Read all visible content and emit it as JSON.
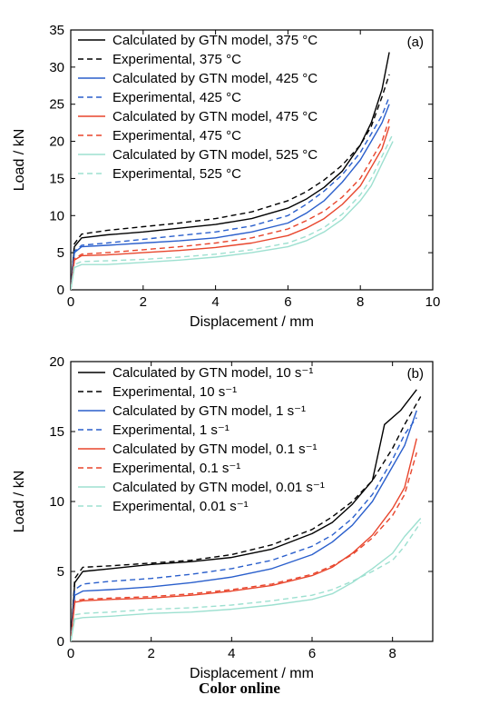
{
  "caption": "Color online",
  "chart_data": [
    {
      "type": "line",
      "panel_label": "(a)",
      "xlabel": "Displacement / mm",
      "ylabel": "Load / kN",
      "xlim": [
        0,
        10
      ],
      "ylim": [
        0,
        35
      ],
      "xticks": [
        0,
        2,
        4,
        6,
        8,
        10
      ],
      "yticks": [
        0,
        5,
        10,
        15,
        20,
        25,
        30,
        35
      ],
      "legend_position": "top-left",
      "series": [
        {
          "name": "Calculated by GTN model, 375 °C",
          "color": "#000000",
          "dash": "solid",
          "x": [
            0,
            0.1,
            0.3,
            1,
            2,
            3,
            4,
            5,
            6,
            6.5,
            7,
            7.5,
            8,
            8.3,
            8.6,
            8.8
          ],
          "y": [
            0,
            5.8,
            7.0,
            7.4,
            7.8,
            8.3,
            8.8,
            9.6,
            11.0,
            12.2,
            13.8,
            16.0,
            19.5,
            22.5,
            27.0,
            32.0
          ]
        },
        {
          "name": "Experimental, 375 °C",
          "color": "#000000",
          "dash": "dashed",
          "x": [
            0,
            0.1,
            0.3,
            1,
            2,
            3,
            4,
            5,
            6,
            6.5,
            7,
            7.5,
            8,
            8.3,
            8.6,
            8.8
          ],
          "y": [
            0,
            6.2,
            7.5,
            8.0,
            8.5,
            9.0,
            9.6,
            10.5,
            12.0,
            13.2,
            14.8,
            16.8,
            19.5,
            22.0,
            26.0,
            29.0
          ]
        },
        {
          "name": "Calculated by GTN model, 425 °C",
          "color": "#2a5fcc",
          "dash": "solid",
          "x": [
            0,
            0.1,
            0.3,
            1,
            2,
            3,
            4,
            5,
            6,
            6.5,
            7,
            7.5,
            8,
            8.3,
            8.6,
            8.8
          ],
          "y": [
            0,
            5.0,
            5.8,
            6.0,
            6.3,
            6.6,
            7.0,
            7.8,
            9.0,
            10.3,
            12.0,
            14.5,
            17.5,
            20.0,
            22.5,
            25.0
          ]
        },
        {
          "name": "Experimental, 425 °C",
          "color": "#2a5fcc",
          "dash": "dashed",
          "x": [
            0,
            0.1,
            0.3,
            1,
            2,
            3,
            4,
            5,
            6,
            6.5,
            7,
            7.5,
            8,
            8.3,
            8.6,
            8.8
          ],
          "y": [
            0,
            5.2,
            6.0,
            6.3,
            6.8,
            7.3,
            7.8,
            8.6,
            10.0,
            11.5,
            13.3,
            15.5,
            18.5,
            21.0,
            23.5,
            26.0
          ]
        },
        {
          "name": "Calculated by GTN model, 475 °C",
          "color": "#e8452c",
          "dash": "solid",
          "x": [
            0,
            0.1,
            0.3,
            1,
            2,
            3,
            4,
            5,
            6,
            6.5,
            7,
            7.5,
            8,
            8.3,
            8.6,
            8.8
          ],
          "y": [
            0,
            4.0,
            4.6,
            4.7,
            5.0,
            5.3,
            5.7,
            6.3,
            7.3,
            8.3,
            9.6,
            11.5,
            14.0,
            16.5,
            19.0,
            22.0
          ]
        },
        {
          "name": "Experimental, 475 °C",
          "color": "#e8452c",
          "dash": "dashed",
          "x": [
            0,
            0.1,
            0.3,
            1,
            2,
            3,
            4,
            5,
            6,
            6.5,
            7,
            7.5,
            8,
            8.3,
            8.6,
            8.8
          ],
          "y": [
            0,
            4.2,
            4.8,
            5.0,
            5.4,
            5.8,
            6.3,
            7.0,
            8.2,
            9.3,
            10.6,
            12.5,
            15.0,
            17.5,
            20.0,
            23.0
          ]
        },
        {
          "name": "Calculated by GTN model, 525 °C",
          "color": "#9de0d0",
          "dash": "solid",
          "x": [
            0,
            0.1,
            0.3,
            1,
            2,
            3,
            4,
            5,
            6,
            6.5,
            7,
            7.5,
            8,
            8.3,
            8.6,
            8.9
          ],
          "y": [
            0,
            3.0,
            3.4,
            3.4,
            3.7,
            4.0,
            4.4,
            5.0,
            5.8,
            6.6,
            7.8,
            9.5,
            12.0,
            14.0,
            17.0,
            20.0
          ]
        },
        {
          "name": "Experimental, 525 °C",
          "color": "#9de0d0",
          "dash": "dashed",
          "x": [
            0,
            0.1,
            0.3,
            1,
            2,
            3,
            4,
            5,
            6,
            6.5,
            7,
            7.5,
            8,
            8.3,
            8.6,
            8.9
          ],
          "y": [
            0,
            3.4,
            3.8,
            3.9,
            4.1,
            4.4,
            4.8,
            5.4,
            6.3,
            7.2,
            8.4,
            10.2,
            12.8,
            15.0,
            18.0,
            21.0
          ]
        }
      ]
    },
    {
      "type": "line",
      "panel_label": "(b)",
      "xlabel": "Displacement / mm",
      "ylabel": "Load / kN",
      "xlim": [
        0,
        9
      ],
      "ylim": [
        0,
        20
      ],
      "xticks": [
        0,
        2,
        4,
        6,
        8
      ],
      "yticks": [
        0,
        5,
        10,
        15,
        20
      ],
      "legend_position": "top-left",
      "series": [
        {
          "name": "Calculated by GTN model, 10 s⁻¹",
          "color": "#000000",
          "dash": "solid",
          "x": [
            0,
            0.1,
            0.3,
            1,
            2,
            3,
            4,
            5,
            6,
            6.5,
            7,
            7.5,
            7.8,
            8.2,
            8.6
          ],
          "y": [
            0,
            4.2,
            5.0,
            5.2,
            5.5,
            5.7,
            6.0,
            6.6,
            7.7,
            8.5,
            9.8,
            11.5,
            15.5,
            16.5,
            18.0
          ]
        },
        {
          "name": "Experimental, 10 s⁻¹",
          "color": "#000000",
          "dash": "dashed",
          "x": [
            0,
            0.1,
            0.3,
            1,
            2,
            3,
            4,
            5,
            6,
            6.5,
            7,
            7.5,
            8,
            8.3,
            8.7
          ],
          "y": [
            0,
            4.5,
            5.3,
            5.4,
            5.6,
            5.8,
            6.2,
            6.9,
            8.0,
            8.9,
            10.0,
            11.5,
            13.8,
            15.5,
            17.5
          ]
        },
        {
          "name": "Calculated by GTN model, 1 s⁻¹",
          "color": "#2a5fcc",
          "dash": "solid",
          "x": [
            0,
            0.1,
            0.3,
            1,
            2,
            3,
            4,
            5,
            6,
            6.5,
            7,
            7.5,
            8,
            8.3,
            8.6
          ],
          "y": [
            0,
            3.3,
            3.6,
            3.7,
            3.9,
            4.2,
            4.6,
            5.2,
            6.2,
            7.1,
            8.3,
            10.0,
            12.5,
            14.0,
            16.5
          ]
        },
        {
          "name": "Experimental, 1 s⁻¹",
          "color": "#2a5fcc",
          "dash": "dashed",
          "x": [
            0,
            0.1,
            0.3,
            1,
            2,
            3,
            4,
            5,
            6,
            6.5,
            7,
            7.5,
            8,
            8.3,
            8.6
          ],
          "y": [
            0,
            3.7,
            4.1,
            4.3,
            4.5,
            4.8,
            5.2,
            5.8,
            6.8,
            7.6,
            8.8,
            10.5,
            13.0,
            14.8,
            16.0
          ]
        },
        {
          "name": "Calculated by GTN model, 0.1 s⁻¹",
          "color": "#e8452c",
          "dash": "solid",
          "x": [
            0,
            0.1,
            0.3,
            1,
            2,
            3,
            4,
            5,
            6,
            6.5,
            7,
            7.5,
            8,
            8.3,
            8.6
          ],
          "y": [
            0,
            2.8,
            2.9,
            3.0,
            3.1,
            3.3,
            3.6,
            4.0,
            4.7,
            5.3,
            6.3,
            7.6,
            9.5,
            11.0,
            14.5
          ]
        },
        {
          "name": "Experimental, 0.1 s⁻¹",
          "color": "#e8452c",
          "dash": "dashed",
          "x": [
            0,
            0.1,
            0.3,
            1,
            2,
            3,
            4,
            5,
            6,
            6.5,
            7,
            7.5,
            8,
            8.3,
            8.6
          ],
          "y": [
            0,
            2.9,
            3.0,
            3.1,
            3.2,
            3.4,
            3.7,
            4.1,
            4.8,
            5.4,
            6.2,
            7.4,
            9.0,
            10.5,
            13.5
          ]
        },
        {
          "name": "Calculated by GTN model, 0.01 s⁻¹",
          "color": "#9de0d0",
          "dash": "solid",
          "x": [
            0,
            0.1,
            0.3,
            1,
            2,
            3,
            4,
            5,
            6,
            6.5,
            7,
            7.5,
            8,
            8.3,
            8.7
          ],
          "y": [
            0,
            1.6,
            1.7,
            1.8,
            2.0,
            2.1,
            2.3,
            2.6,
            3.0,
            3.4,
            4.2,
            5.2,
            6.3,
            7.5,
            8.8
          ]
        },
        {
          "name": "Experimental, 0.01 s⁻¹",
          "color": "#9de0d0",
          "dash": "dashed",
          "x": [
            0,
            0.1,
            0.3,
            1,
            2,
            3,
            4,
            5,
            6,
            6.5,
            7,
            7.5,
            8,
            8.3,
            8.7
          ],
          "y": [
            0,
            1.9,
            2.0,
            2.1,
            2.3,
            2.4,
            2.6,
            2.9,
            3.3,
            3.7,
            4.3,
            5.0,
            5.8,
            6.8,
            8.5
          ]
        }
      ]
    }
  ]
}
